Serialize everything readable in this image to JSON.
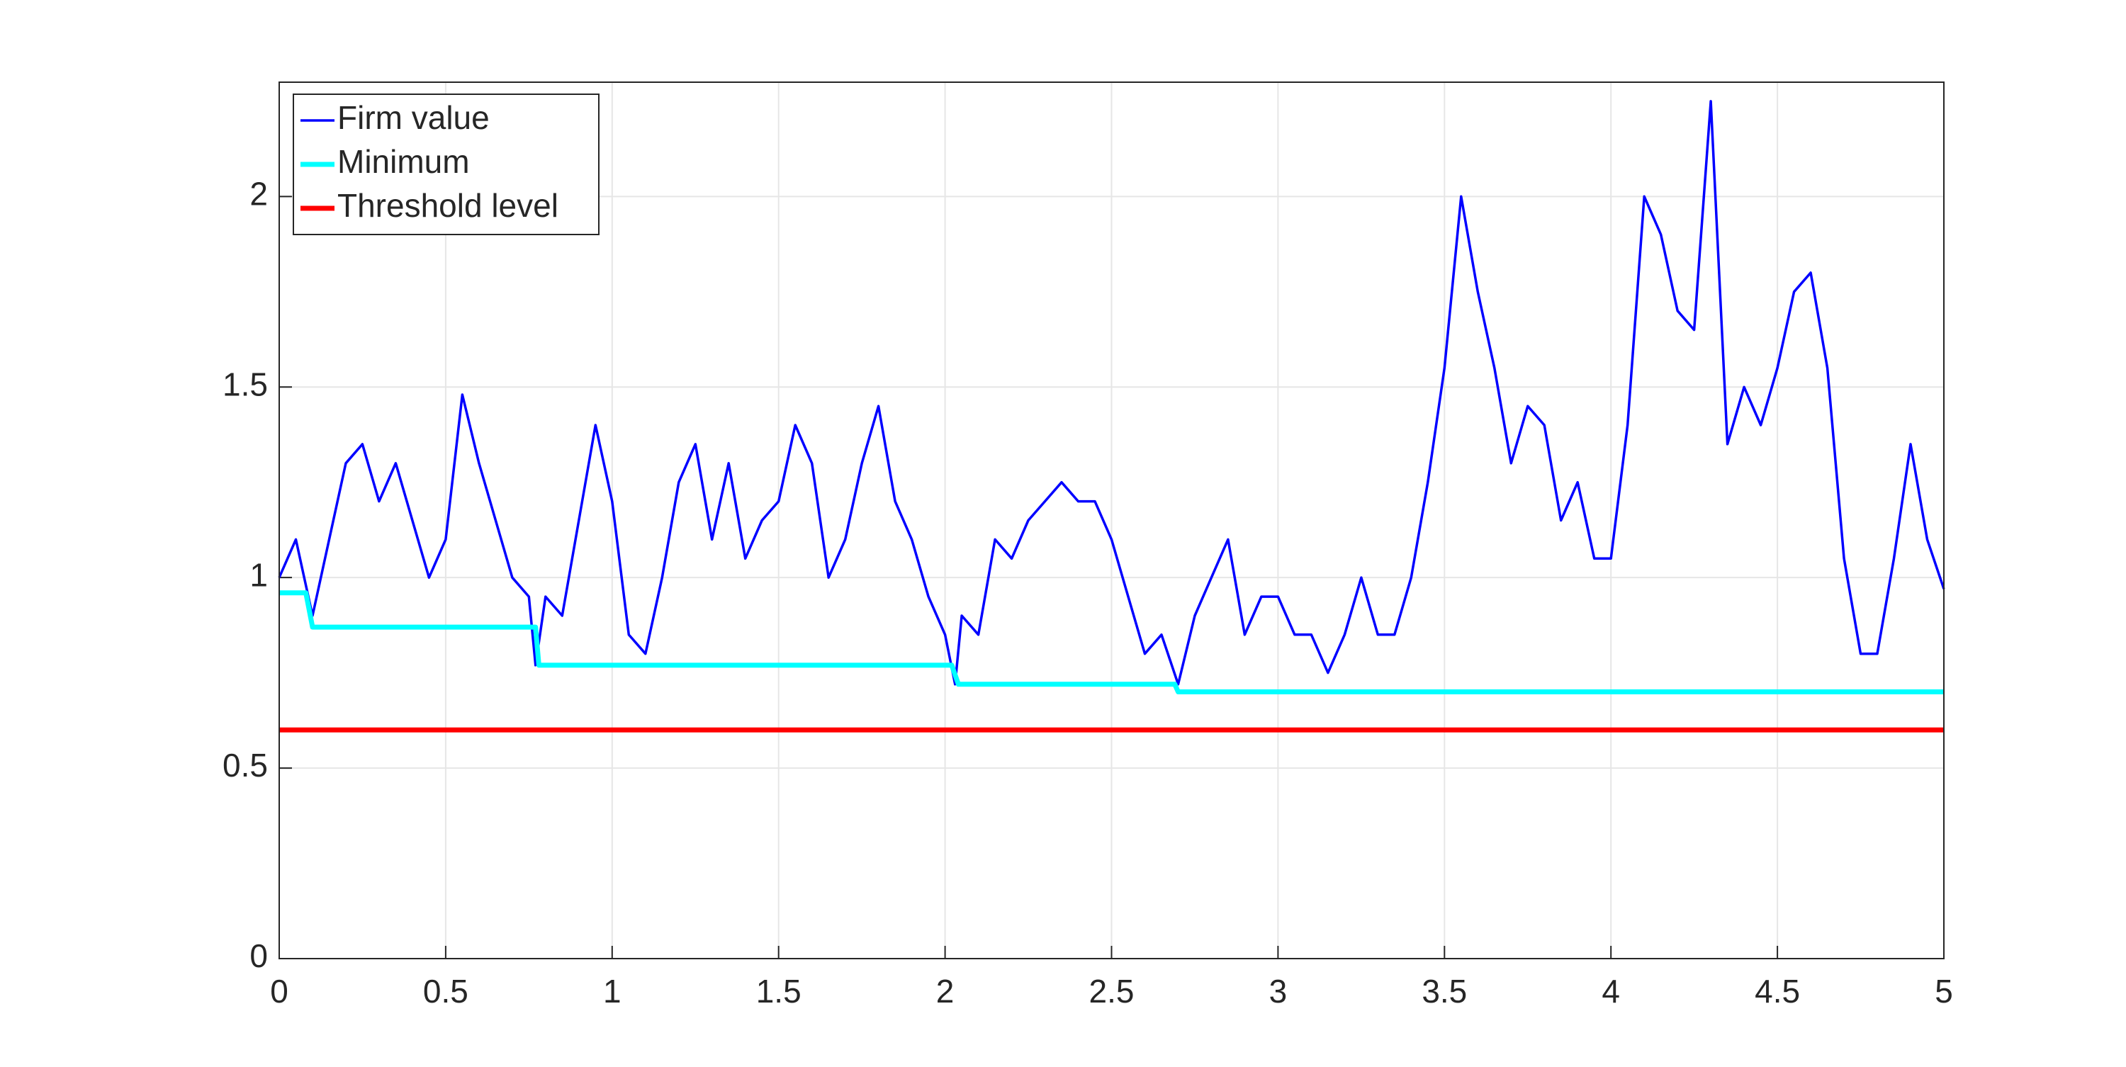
{
  "chart_data": {
    "type": "line",
    "xlim": [
      0,
      5
    ],
    "ylim": [
      0,
      2.3
    ],
    "xticks": [
      0,
      0.5,
      1,
      1.5,
      2,
      2.5,
      3,
      3.5,
      4,
      4.5,
      5
    ],
    "yticks": [
      0,
      0.5,
      1,
      1.5,
      2
    ],
    "grid": true,
    "legend": "upper left",
    "series": [
      {
        "name": "Firm value",
        "color": "#0000ff",
        "x": [
          0,
          0.05,
          0.1,
          0.15,
          0.2,
          0.25,
          0.3,
          0.35,
          0.4,
          0.45,
          0.5,
          0.55,
          0.6,
          0.65,
          0.7,
          0.75,
          0.77,
          0.8,
          0.85,
          0.9,
          0.95,
          1.0,
          1.05,
          1.1,
          1.15,
          1.2,
          1.25,
          1.3,
          1.35,
          1.4,
          1.45,
          1.5,
          1.55,
          1.6,
          1.65,
          1.7,
          1.75,
          1.8,
          1.85,
          1.9,
          1.95,
          2.0,
          2.03,
          2.05,
          2.1,
          2.15,
          2.2,
          2.25,
          2.3,
          2.35,
          2.4,
          2.45,
          2.5,
          2.55,
          2.6,
          2.65,
          2.7,
          2.75,
          2.8,
          2.85,
          2.9,
          2.95,
          3.0,
          3.05,
          3.1,
          3.15,
          3.2,
          3.25,
          3.3,
          3.35,
          3.4,
          3.45,
          3.5,
          3.55,
          3.6,
          3.65,
          3.7,
          3.75,
          3.8,
          3.85,
          3.9,
          3.95,
          4.0,
          4.05,
          4.1,
          4.15,
          4.2,
          4.25,
          4.3,
          4.35,
          4.4,
          4.45,
          4.5,
          4.55,
          4.6,
          4.65,
          4.7,
          4.75,
          4.8,
          4.85,
          4.9,
          4.95,
          5.0
        ],
        "values": [
          1.0,
          1.1,
          0.9,
          1.1,
          1.3,
          1.35,
          1.2,
          1.3,
          1.15,
          1.0,
          1.1,
          1.48,
          1.3,
          1.15,
          1.0,
          0.95,
          0.77,
          0.95,
          0.9,
          1.15,
          1.4,
          1.2,
          0.85,
          0.8,
          1.0,
          1.25,
          1.35,
          1.1,
          1.3,
          1.05,
          1.15,
          1.2,
          1.4,
          1.3,
          1.0,
          1.1,
          1.3,
          1.45,
          1.2,
          1.1,
          0.95,
          0.85,
          0.72,
          0.9,
          0.85,
          1.1,
          1.05,
          1.15,
          1.2,
          1.25,
          1.2,
          1.2,
          1.1,
          0.95,
          0.8,
          0.85,
          0.72,
          0.9,
          1.0,
          1.1,
          0.85,
          0.95,
          0.95,
          0.85,
          0.85,
          0.75,
          0.85,
          1.0,
          0.85,
          0.85,
          1.0,
          1.25,
          1.55,
          2.0,
          1.75,
          1.55,
          1.3,
          1.45,
          1.4,
          1.15,
          1.25,
          1.05,
          1.05,
          1.4,
          2.0,
          1.9,
          1.7,
          1.65,
          2.25,
          1.35,
          1.5,
          1.4,
          1.55,
          1.75,
          1.8,
          1.55,
          1.05,
          0.8,
          0.8,
          1.05,
          1.35,
          1.1,
          0.97
        ]
      },
      {
        "name": "Minimum",
        "color": "#00ffff",
        "x": [
          0,
          0.08,
          0.1,
          0.77,
          0.78,
          2.02,
          2.04,
          2.69,
          2.7,
          5
        ],
        "values": [
          0.96,
          0.96,
          0.87,
          0.87,
          0.77,
          0.77,
          0.72,
          0.72,
          0.7,
          0.7
        ]
      },
      {
        "name": "Threshold level",
        "color": "#ff0000",
        "x": [
          0,
          5
        ],
        "values": [
          0.6,
          0.6
        ]
      }
    ]
  }
}
